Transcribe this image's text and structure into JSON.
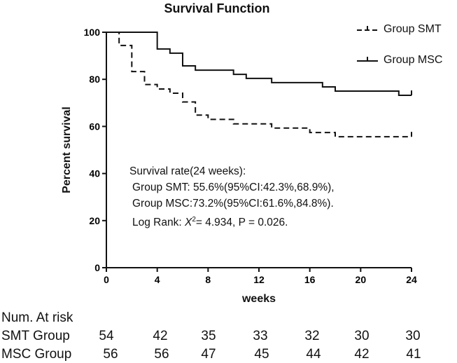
{
  "chart_data": {
    "type": "line",
    "subtype": "kaplan-meier step",
    "title": "Survival Function",
    "xlabel": "weeks",
    "ylabel": "Percent survival",
    "xlim": [
      0,
      24
    ],
    "ylim": [
      0,
      100
    ],
    "xticks": [
      "0",
      "4",
      "8",
      "12",
      "16",
      "20",
      "24"
    ],
    "yticks": [
      "0",
      "20",
      "40",
      "60",
      "80",
      "100"
    ],
    "grid": false,
    "legend_position": "top-right",
    "series": [
      {
        "name": "Group SMT",
        "style": "dashed",
        "color": "#111111",
        "x": [
          0,
          1,
          2,
          3,
          4,
          5,
          6,
          7,
          8,
          10,
          13,
          16,
          18,
          24
        ],
        "y": [
          100,
          94.4,
          83.3,
          77.8,
          75.9,
          74.1,
          70.4,
          64.8,
          63.0,
          61.1,
          59.3,
          57.4,
          55.6,
          55.6
        ],
        "censored_at": [
          24
        ]
      },
      {
        "name": "Group MSC",
        "style": "solid",
        "color": "#111111",
        "x": [
          0,
          4,
          5,
          6,
          7,
          10,
          11,
          13,
          17,
          18,
          23,
          24
        ],
        "y": [
          100,
          92.9,
          91.1,
          85.7,
          83.9,
          82.1,
          80.4,
          78.6,
          76.8,
          75.0,
          73.2,
          73.2
        ],
        "censored_at": [
          24
        ]
      }
    ],
    "annotation": {
      "line1": "Survival rate(24 weeks):",
      "line2": "Group SMT: 55.6%(95%CI:42.3%,68.9%),",
      "line3": "Group MSC:73.2%(95%CI:61.6%,84.8%).",
      "logrank_prefix": "Log Rank: ",
      "chi_symbol": "X",
      "chi_exp": "2",
      "logrank_rest": "= 4.934, P = 0.026."
    }
  },
  "at_risk": {
    "heading": "Num. At risk",
    "rows": [
      {
        "label": "SMT Group",
        "values": [
          "54",
          "42",
          "35",
          "33",
          "32",
          "30",
          "30"
        ]
      },
      {
        "label": "MSC Group",
        "values": [
          "56",
          "56",
          "47",
          "45",
          "44",
          "42",
          "41"
        ]
      }
    ]
  }
}
